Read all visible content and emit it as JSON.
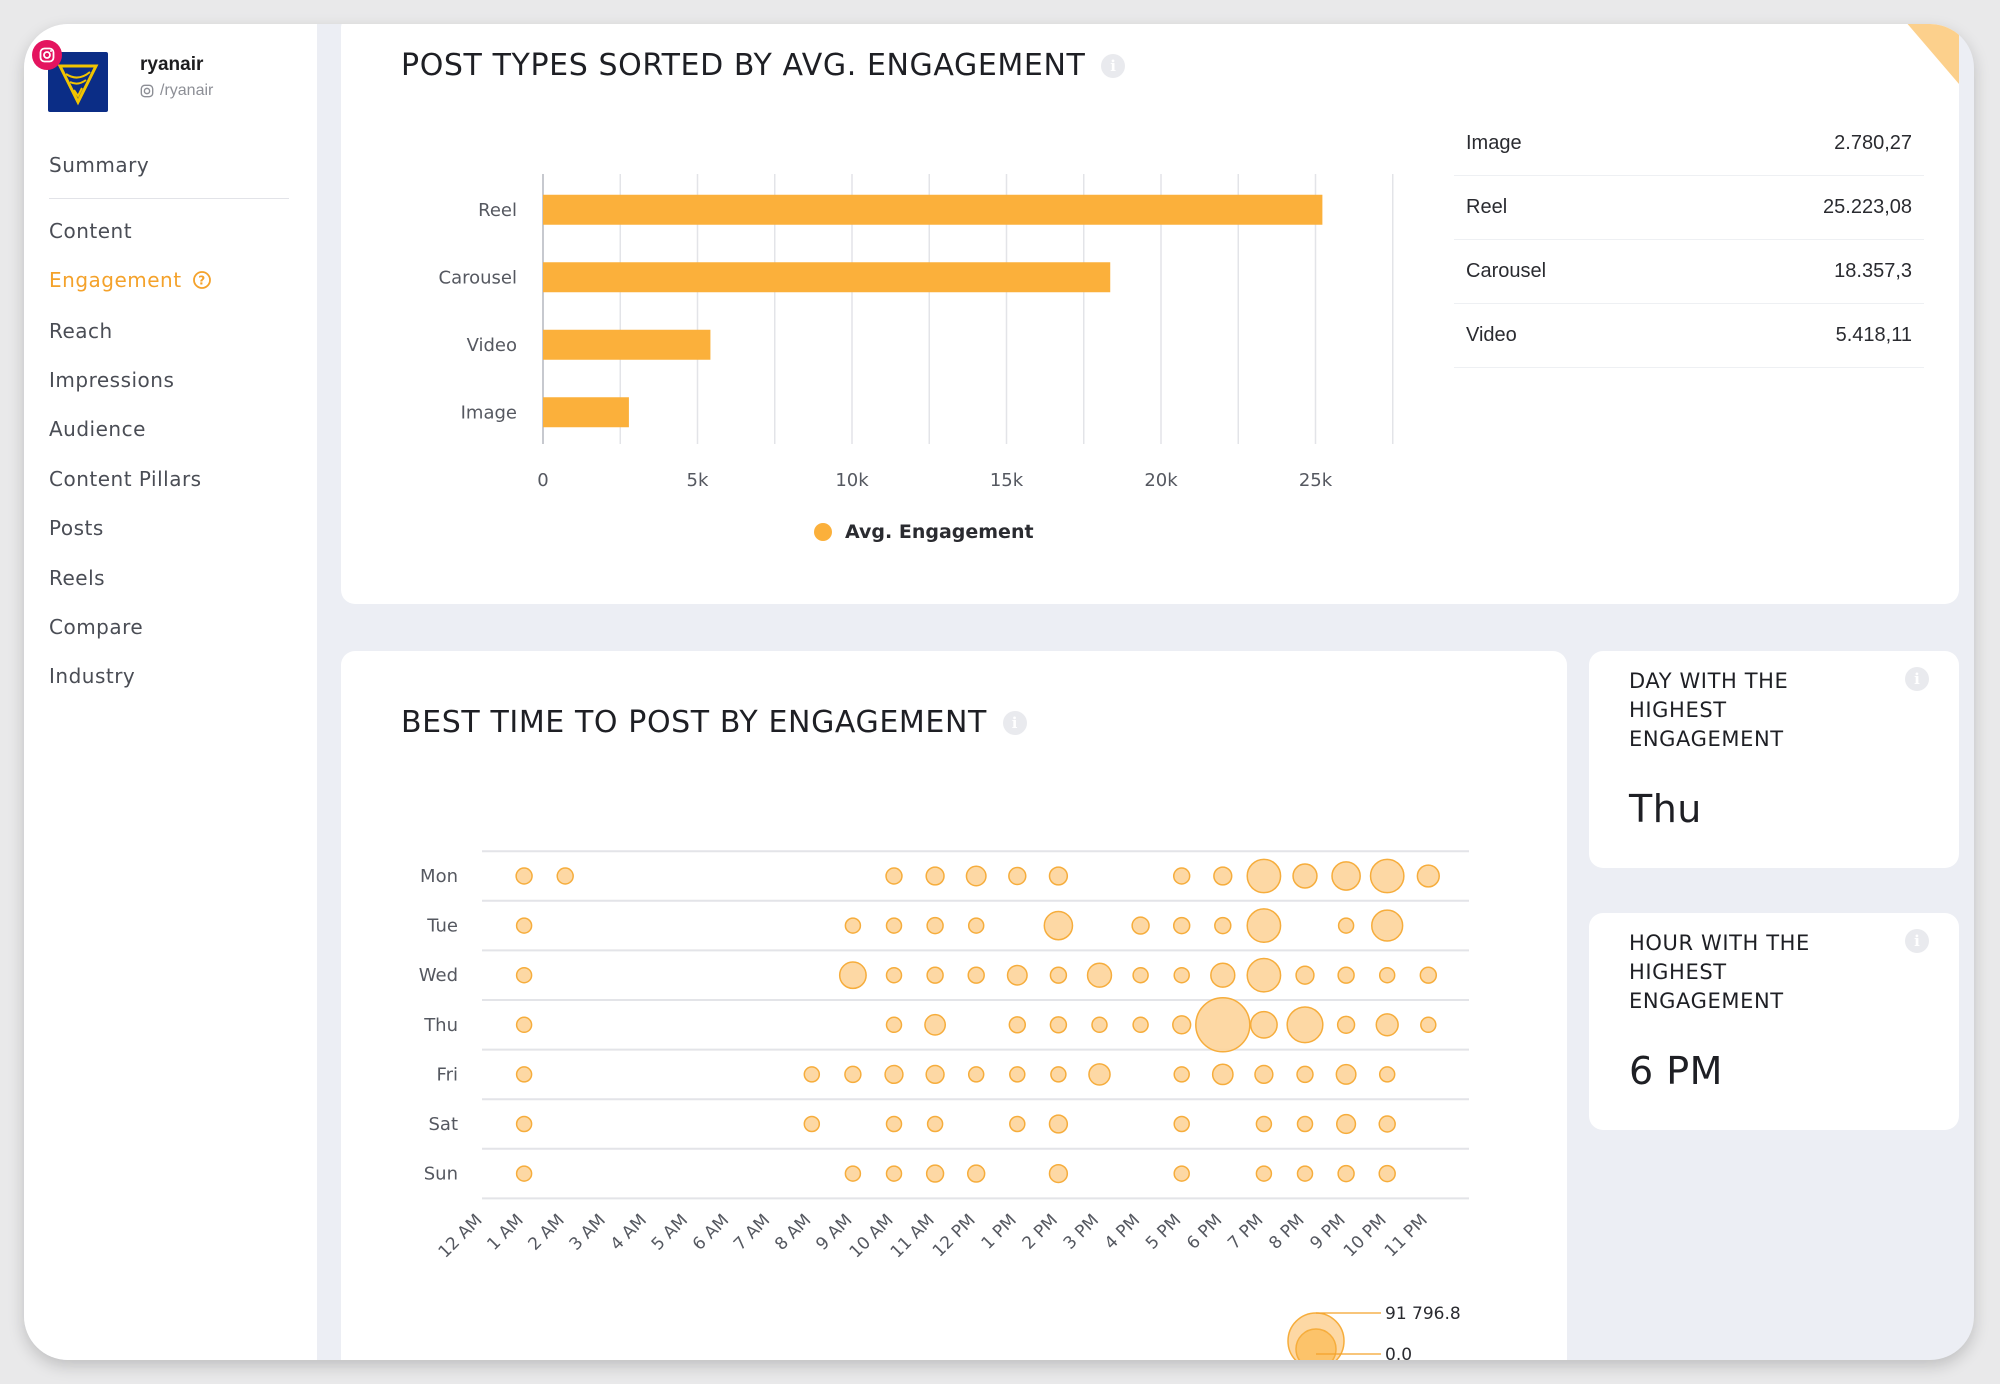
{
  "profile": {
    "name": "ryanair",
    "handle": "/ryanair"
  },
  "sidebar": {
    "items": [
      {
        "label": "Summary"
      },
      {
        "label": "Content"
      },
      {
        "label": "Engagement"
      },
      {
        "label": "Reach"
      },
      {
        "label": "Impressions"
      },
      {
        "label": "Audience"
      },
      {
        "label": "Content Pillars"
      },
      {
        "label": "Posts"
      },
      {
        "label": "Reels"
      },
      {
        "label": "Compare"
      },
      {
        "label": "Industry"
      }
    ],
    "active_index": 2
  },
  "post_types": {
    "title": "POST TYPES SORTED BY AVG. ENGAGEMENT",
    "table": [
      {
        "type": "Image",
        "value": "2.780,27"
      },
      {
        "type": "Reel",
        "value": "25.223,08"
      },
      {
        "type": "Carousel",
        "value": "18.357,3"
      },
      {
        "type": "Video",
        "value": "5.418,11"
      }
    ]
  },
  "best_time": {
    "title": "BEST TIME TO POST BY ENGAGEMENT"
  },
  "day_card": {
    "label": "DAY WITH THE HIGHEST ENGAGEMENT",
    "value": "Thu"
  },
  "hour_card": {
    "label": "HOUR WITH THE HIGHEST ENGAGEMENT",
    "value": "6 PM"
  },
  "colors": {
    "accent": "#f4a22b",
    "bar": "#fbb03b",
    "bubble_fill": "#fdd49a",
    "bubble_stroke": "#f6ad3c"
  },
  "chart_data": [
    {
      "type": "bar",
      "orientation": "horizontal",
      "categories": [
        "Reel",
        "Carousel",
        "Video",
        "Image"
      ],
      "series": [
        {
          "name": "Avg. Engagement",
          "values": [
            25223.08,
            18357.3,
            5418.11,
            2780.27
          ]
        }
      ],
      "xlim": [
        0,
        27500
      ],
      "xticks": [
        0,
        5000,
        10000,
        15000,
        20000,
        25000
      ],
      "xtick_labels": [
        "0",
        "5k",
        "10k",
        "15k",
        "20k",
        "25k"
      ],
      "grid": true,
      "legend": "bottom"
    },
    {
      "type": "scatter",
      "subtype": "bubble",
      "x_categories": [
        "12 AM",
        "1 AM",
        "2 AM",
        "3 AM",
        "4 AM",
        "5 AM",
        "6 AM",
        "7 AM",
        "8 AM",
        "9 AM",
        "10 AM",
        "11 AM",
        "12 PM",
        "1 PM",
        "2 PM",
        "3 PM",
        "4 PM",
        "5 PM",
        "6 PM",
        "7 PM",
        "8 PM",
        "9 PM",
        "10 PM",
        "11 PM"
      ],
      "y_categories": [
        "Mon",
        "Tue",
        "Wed",
        "Thu",
        "Fri",
        "Sat",
        "Sun"
      ],
      "size_legend": {
        "max_label": "91 796.8",
        "min_label": "0.0",
        "max": 91796.8,
        "min": 0
      },
      "points": [
        {
          "day": "Mon",
          "hour": "1 AM",
          "value": 8000
        },
        {
          "day": "Mon",
          "hour": "2 AM",
          "value": 8000
        },
        {
          "day": "Mon",
          "hour": "10 AM",
          "value": 8000
        },
        {
          "day": "Mon",
          "hour": "11 AM",
          "value": 10000
        },
        {
          "day": "Mon",
          "hour": "12 PM",
          "value": 12000
        },
        {
          "day": "Mon",
          "hour": "1 PM",
          "value": 9000
        },
        {
          "day": "Mon",
          "hour": "2 PM",
          "value": 10000
        },
        {
          "day": "Mon",
          "hour": "5 PM",
          "value": 8000
        },
        {
          "day": "Mon",
          "hour": "6 PM",
          "value": 10000
        },
        {
          "day": "Mon",
          "hour": "7 PM",
          "value": 35000
        },
        {
          "day": "Mon",
          "hour": "8 PM",
          "value": 18000
        },
        {
          "day": "Mon",
          "hour": "9 PM",
          "value": 25000
        },
        {
          "day": "Mon",
          "hour": "10 PM",
          "value": 35000
        },
        {
          "day": "Mon",
          "hour": "11 PM",
          "value": 15000
        },
        {
          "day": "Tue",
          "hour": "1 AM",
          "value": 6000
        },
        {
          "day": "Tue",
          "hour": "9 AM",
          "value": 7000
        },
        {
          "day": "Tue",
          "hour": "10 AM",
          "value": 7000
        },
        {
          "day": "Tue",
          "hour": "11 AM",
          "value": 8000
        },
        {
          "day": "Tue",
          "hour": "12 PM",
          "value": 7000
        },
        {
          "day": "Tue",
          "hour": "2 PM",
          "value": 25000
        },
        {
          "day": "Tue",
          "hour": "4 PM",
          "value": 9000
        },
        {
          "day": "Tue",
          "hour": "5 PM",
          "value": 8000
        },
        {
          "day": "Tue",
          "hour": "6 PM",
          "value": 8000
        },
        {
          "day": "Tue",
          "hour": "7 PM",
          "value": 35000
        },
        {
          "day": "Tue",
          "hour": "9 PM",
          "value": 7000
        },
        {
          "day": "Tue",
          "hour": "10 PM",
          "value": 30000
        },
        {
          "day": "Wed",
          "hour": "1 AM",
          "value": 6000
        },
        {
          "day": "Wed",
          "hour": "9 AM",
          "value": 22000
        },
        {
          "day": "Wed",
          "hour": "10 AM",
          "value": 7000
        },
        {
          "day": "Wed",
          "hour": "11 AM",
          "value": 8000
        },
        {
          "day": "Wed",
          "hour": "12 PM",
          "value": 8000
        },
        {
          "day": "Wed",
          "hour": "1 PM",
          "value": 12000
        },
        {
          "day": "Wed",
          "hour": "2 PM",
          "value": 8000
        },
        {
          "day": "Wed",
          "hour": "3 PM",
          "value": 18000
        },
        {
          "day": "Wed",
          "hour": "4 PM",
          "value": 7000
        },
        {
          "day": "Wed",
          "hour": "5 PM",
          "value": 7000
        },
        {
          "day": "Wed",
          "hour": "6 PM",
          "value": 18000
        },
        {
          "day": "Wed",
          "hour": "7 PM",
          "value": 35000
        },
        {
          "day": "Wed",
          "hour": "8 PM",
          "value": 10000
        },
        {
          "day": "Wed",
          "hour": "9 PM",
          "value": 8000
        },
        {
          "day": "Wed",
          "hour": "10 PM",
          "value": 7000
        },
        {
          "day": "Wed",
          "hour": "11 PM",
          "value": 8000
        },
        {
          "day": "Thu",
          "hour": "1 AM",
          "value": 6000
        },
        {
          "day": "Thu",
          "hour": "10 AM",
          "value": 7000
        },
        {
          "day": "Thu",
          "hour": "11 AM",
          "value": 13000
        },
        {
          "day": "Thu",
          "hour": "1 PM",
          "value": 8000
        },
        {
          "day": "Thu",
          "hour": "2 PM",
          "value": 8000
        },
        {
          "day": "Thu",
          "hour": "3 PM",
          "value": 7000
        },
        {
          "day": "Thu",
          "hour": "4 PM",
          "value": 7000
        },
        {
          "day": "Thu",
          "hour": "5 PM",
          "value": 10000
        },
        {
          "day": "Thu",
          "hour": "6 PM",
          "value": 91796.8
        },
        {
          "day": "Thu",
          "hour": "7 PM",
          "value": 22000
        },
        {
          "day": "Thu",
          "hour": "8 PM",
          "value": 40000
        },
        {
          "day": "Thu",
          "hour": "9 PM",
          "value": 9000
        },
        {
          "day": "Thu",
          "hour": "10 PM",
          "value": 15000
        },
        {
          "day": "Thu",
          "hour": "11 PM",
          "value": 5000
        },
        {
          "day": "Fri",
          "hour": "1 AM",
          "value": 6000
        },
        {
          "day": "Fri",
          "hour": "8 AM",
          "value": 6000
        },
        {
          "day": "Fri",
          "hour": "9 AM",
          "value": 8000
        },
        {
          "day": "Fri",
          "hour": "10 AM",
          "value": 10000
        },
        {
          "day": "Fri",
          "hour": "11 AM",
          "value": 10000
        },
        {
          "day": "Fri",
          "hour": "12 PM",
          "value": 7000
        },
        {
          "day": "Fri",
          "hour": "1 PM",
          "value": 7000
        },
        {
          "day": "Fri",
          "hour": "2 PM",
          "value": 5000
        },
        {
          "day": "Fri",
          "hour": "3 PM",
          "value": 14000
        },
        {
          "day": "Fri",
          "hour": "5 PM",
          "value": 5000
        },
        {
          "day": "Fri",
          "hour": "6 PM",
          "value": 13000
        },
        {
          "day": "Fri",
          "hour": "7 PM",
          "value": 10000
        },
        {
          "day": "Fri",
          "hour": "8 PM",
          "value": 8000
        },
        {
          "day": "Fri",
          "hour": "9 PM",
          "value": 12000
        },
        {
          "day": "Fri",
          "hour": "10 PM",
          "value": 6000
        },
        {
          "day": "Sat",
          "hour": "1 AM",
          "value": 6000
        },
        {
          "day": "Sat",
          "hour": "8 AM",
          "value": 6000
        },
        {
          "day": "Sat",
          "hour": "10 AM",
          "value": 7000
        },
        {
          "day": "Sat",
          "hour": "11 AM",
          "value": 7000
        },
        {
          "day": "Sat",
          "hour": "1 PM",
          "value": 6000
        },
        {
          "day": "Sat",
          "hour": "2 PM",
          "value": 10000
        },
        {
          "day": "Sat",
          "hour": "5 PM",
          "value": 7000
        },
        {
          "day": "Sat",
          "hour": "7 PM",
          "value": 5000
        },
        {
          "day": "Sat",
          "hour": "8 PM",
          "value": 5000
        },
        {
          "day": "Sat",
          "hour": "9 PM",
          "value": 11000
        },
        {
          "day": "Sat",
          "hour": "10 PM",
          "value": 8000
        },
        {
          "day": "Sun",
          "hour": "1 AM",
          "value": 6000
        },
        {
          "day": "Sun",
          "hour": "9 AM",
          "value": 6000
        },
        {
          "day": "Sun",
          "hour": "10 AM",
          "value": 5000
        },
        {
          "day": "Sun",
          "hour": "11 AM",
          "value": 9000
        },
        {
          "day": "Sun",
          "hour": "12 PM",
          "value": 9000
        },
        {
          "day": "Sun",
          "hour": "2 PM",
          "value": 10000
        },
        {
          "day": "Sun",
          "hour": "5 PM",
          "value": 5000
        },
        {
          "day": "Sun",
          "hour": "7 PM",
          "value": 7000
        },
        {
          "day": "Sun",
          "hour": "8 PM",
          "value": 7000
        },
        {
          "day": "Sun",
          "hour": "9 PM",
          "value": 8000
        },
        {
          "day": "Sun",
          "hour": "10 PM",
          "value": 8000
        }
      ]
    }
  ]
}
